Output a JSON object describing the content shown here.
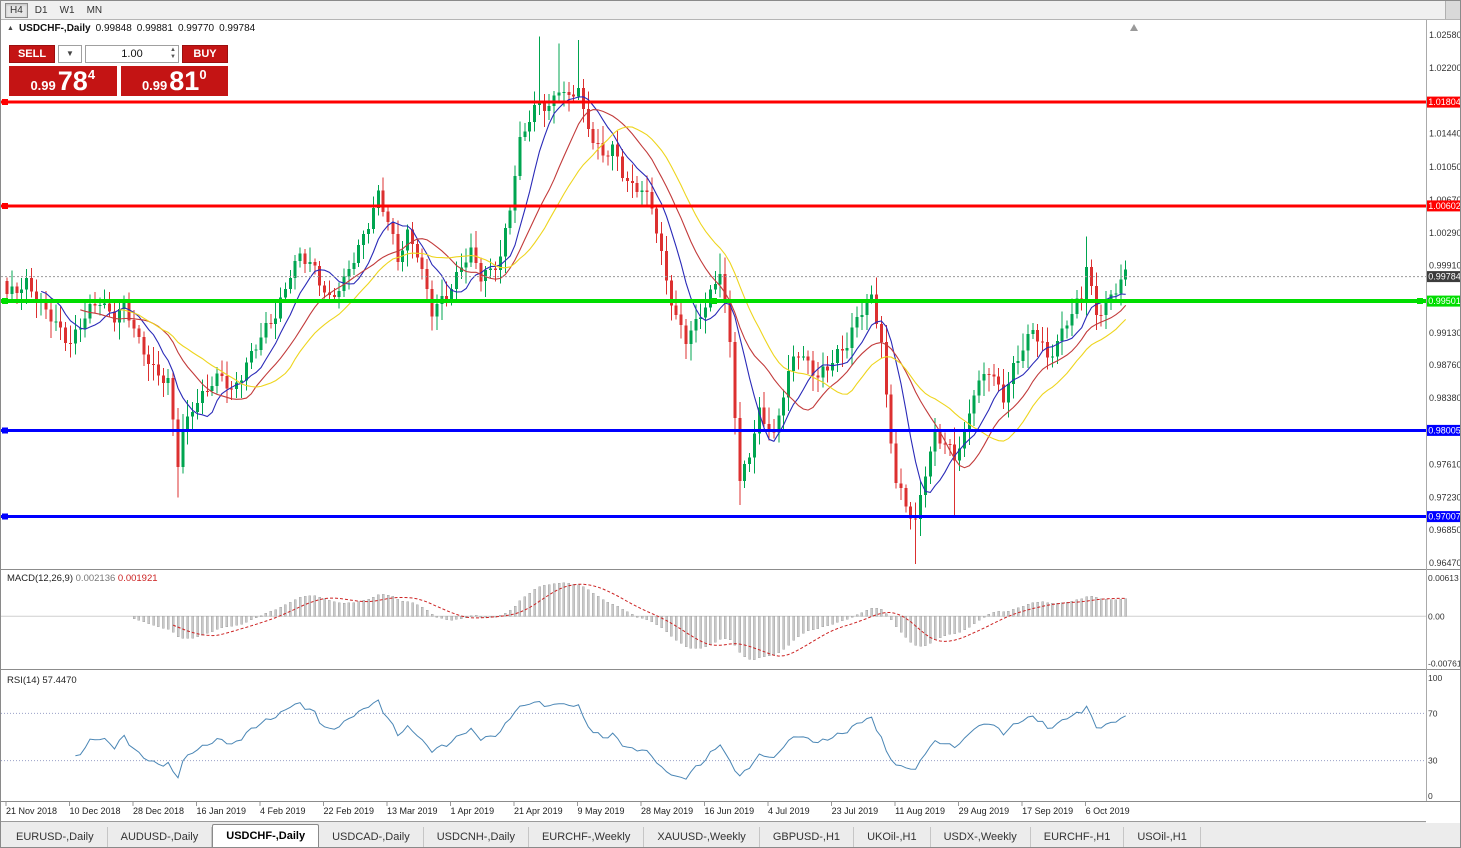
{
  "toolbar": {
    "timeframes": [
      {
        "label": "H4",
        "active": true
      },
      {
        "label": "D1",
        "active": false
      },
      {
        "label": "W1",
        "active": false
      },
      {
        "label": "MN",
        "active": false
      }
    ]
  },
  "chart_header": {
    "symbol": "USDCHF-,Daily",
    "open": "0.99848",
    "high": "0.99881",
    "low": "0.99770",
    "close": "0.99784"
  },
  "trade_panel": {
    "sell_label": "SELL",
    "buy_label": "BUY",
    "volume": "1.00",
    "sell_price": {
      "small": "0.99",
      "big": "78",
      "sup": "4"
    },
    "buy_price": {
      "small": "0.99",
      "big": "81",
      "sup": "0"
    }
  },
  "price_scale": {
    "ticks": [
      "1.02580",
      "1.02200",
      "1.01440",
      "1.01050",
      "1.00670",
      "1.00290",
      "0.99910",
      "0.99130",
      "0.98760",
      "0.98380",
      "0.97610",
      "0.97230",
      "0.96850",
      "0.96470"
    ]
  },
  "levels": [
    {
      "label": "1.01804",
      "price": 1.01804,
      "color": "#FF0000",
      "width": 3,
      "handles": false
    },
    {
      "label": "1.00602",
      "price": 1.00602,
      "color": "#FF0000",
      "width": 3,
      "handles": false
    },
    {
      "label": "0.99501",
      "price": 0.99501,
      "color": "#00DD00",
      "width": 4,
      "handles": true
    },
    {
      "label": "0.98005",
      "price": 0.98005,
      "color": "#0000FF",
      "width": 3,
      "handles": false
    },
    {
      "label": "0.97007",
      "price": 0.97007,
      "color": "#0000FF",
      "width": 3,
      "handles": false
    }
  ],
  "current_price": {
    "label": "0.99784",
    "price": 0.99784
  },
  "macd": {
    "title": "MACD(12,26,9)",
    "value": "0.002136",
    "signal_value": "0.001921",
    "params": {
      "fast": 12,
      "slow": 26,
      "signal": 9
    },
    "axis": [
      {
        "label": "0.00613",
        "value": 0.00613
      },
      {
        "label": "0.00",
        "value": 0
      },
      {
        "label": "-0.0076122",
        "value": -0.0076122
      }
    ]
  },
  "rsi": {
    "title": "RSI(14)",
    "value": "57.4470",
    "period": 14,
    "axis": [
      {
        "label": "100",
        "value": 100
      },
      {
        "label": "70",
        "value": 70
      },
      {
        "label": "30",
        "value": 30
      },
      {
        "label": "0",
        "value": 0
      }
    ],
    "guide_levels": [
      70,
      30
    ]
  },
  "dates": [
    "21 Nov 2018",
    "10 Dec 2018",
    "28 Dec 2018",
    "16 Jan 2019",
    "4 Feb 2019",
    "22 Feb 2019",
    "13 Mar 2019",
    "1 Apr 2019",
    "21 Apr 2019",
    "9 May 2019",
    "28 May 2019",
    "16 Jun 2019",
    "4 Jul 2019",
    "23 Jul 2019",
    "11 Aug 2019",
    "29 Aug 2019",
    "17 Sep 2019",
    "6 Oct 2019"
  ],
  "tabs": [
    {
      "label": "EURUSD-,Daily",
      "active": false
    },
    {
      "label": "AUDUSD-,Daily",
      "active": false
    },
    {
      "label": "USDCHF-,Daily",
      "active": true
    },
    {
      "label": "USDCAD-,Daily",
      "active": false
    },
    {
      "label": "USDCNH-,Daily",
      "active": false
    },
    {
      "label": "EURCHF-,Weekly",
      "active": false
    },
    {
      "label": "XAUUSD-,Weekly",
      "active": false
    },
    {
      "label": "GBPUSD-,H1",
      "active": false
    },
    {
      "label": "UKOil-,H1",
      "active": false
    },
    {
      "label": "USDX-,Weekly",
      "active": false
    },
    {
      "label": "EURCHF-,H1",
      "active": false
    },
    {
      "label": "USOil-,H1",
      "active": false
    }
  ],
  "colors": {
    "up": "#00A550",
    "down": "#DC3030",
    "ma_fast": "#2A2AB8",
    "ma_mid": "#C23B3B",
    "ma_slow": "#EED51E",
    "macd_signal": "#CC2222",
    "macd_hist": "#C9C9C9",
    "rsi_line": "#4A86B5",
    "current_price_tag": "#3C3C3C"
  },
  "chart_data": {
    "type": "candlestick",
    "symbol": "USDCHF-",
    "timeframe": "Daily",
    "n_candles": 230,
    "candles_per_date_label": 13,
    "y_axis_range": [
      0.9647,
      1.0258
    ],
    "current_ohlc": {
      "open": 0.99848,
      "high": 0.99881,
      "low": 0.9977,
      "close": 0.99784
    },
    "moving_averages": [
      {
        "color_key": "ma_fast",
        "period": 8
      },
      {
        "color_key": "ma_mid",
        "period": 16
      },
      {
        "color_key": "ma_slow",
        "period": 24
      }
    ],
    "price_anchors": [
      [
        0,
        0.9955
      ],
      [
        4,
        0.9975
      ],
      [
        8,
        0.9935
      ],
      [
        13,
        0.9905
      ],
      [
        16,
        0.993
      ],
      [
        19,
        0.995
      ],
      [
        22,
        0.9935
      ],
      [
        24,
        0.9945
      ],
      [
        27,
        0.99
      ],
      [
        30,
        0.9875
      ],
      [
        33,
        0.9855
      ],
      [
        35,
        0.976
      ],
      [
        36,
        0.9795
      ],
      [
        38,
        0.983
      ],
      [
        41,
        0.985
      ],
      [
        44,
        0.986
      ],
      [
        46,
        0.9845
      ],
      [
        49,
        0.988
      ],
      [
        52,
        0.9905
      ],
      [
        55,
        0.9935
      ],
      [
        58,
        0.9985
      ],
      [
        60,
        1.0
      ],
      [
        63,
        0.9985
      ],
      [
        66,
        0.9955
      ],
      [
        69,
        0.997
      ],
      [
        72,
        1.001
      ],
      [
        75,
        1.006
      ],
      [
        76,
        1.0075
      ],
      [
        78,
        1.004
      ],
      [
        80,
        0.9995
      ],
      [
        82,
        1.003
      ],
      [
        84,
        1.001
      ],
      [
        87,
        0.9935
      ],
      [
        90,
        0.9955
      ],
      [
        93,
        0.9995
      ],
      [
        95,
        1.0005
      ],
      [
        97,
        0.9975
      ],
      [
        99,
        0.9985
      ],
      [
        101,
        1.0005
      ],
      [
        103,
        1.006
      ],
      [
        105,
        1.013
      ],
      [
        107,
        1.016
      ],
      [
        109,
        1.0185
      ],
      [
        111,
        1.0175
      ],
      [
        113,
        1.0195
      ],
      [
        115,
        1.018
      ],
      [
        117,
        1.02
      ],
      [
        118,
        1.017
      ],
      [
        120,
        1.014
      ],
      [
        122,
        1.0115
      ],
      [
        124,
        1.0125
      ],
      [
        126,
        1.01
      ],
      [
        128,
        1.0085
      ],
      [
        130,
        1.008
      ],
      [
        132,
        1.0055
      ],
      [
        133,
        1.003
      ],
      [
        135,
        0.9975
      ],
      [
        137,
        0.9935
      ],
      [
        139,
        0.9905
      ],
      [
        141,
        0.992
      ],
      [
        143,
        0.9945
      ],
      [
        145,
        0.9975
      ],
      [
        146,
        0.999
      ],
      [
        148,
        0.99
      ],
      [
        150,
        0.9735
      ],
      [
        152,
        0.9775
      ],
      [
        154,
        0.9825
      ],
      [
        156,
        0.9805
      ],
      [
        157,
        0.979
      ],
      [
        159,
        0.984
      ],
      [
        161,
        0.9885
      ],
      [
        162,
        0.9895
      ],
      [
        164,
        0.988
      ],
      [
        166,
        0.986
      ],
      [
        168,
        0.987
      ],
      [
        170,
        0.989
      ],
      [
        172,
        0.9905
      ],
      [
        174,
        0.993
      ],
      [
        176,
        0.9945
      ],
      [
        177,
        0.995
      ],
      [
        179,
        0.9905
      ],
      [
        180,
        0.984
      ],
      [
        182,
        0.9745
      ],
      [
        184,
        0.971
      ],
      [
        186,
        0.969
      ],
      [
        188,
        0.9755
      ],
      [
        190,
        0.98
      ],
      [
        192,
        0.9785
      ],
      [
        194,
        0.9765
      ],
      [
        196,
        0.9795
      ],
      [
        198,
        0.985
      ],
      [
        200,
        0.9865
      ],
      [
        201,
        0.987
      ],
      [
        203,
        0.9845
      ],
      [
        204,
        0.9835
      ],
      [
        206,
        0.9875
      ],
      [
        208,
        0.99
      ],
      [
        210,
        0.9915
      ],
      [
        212,
        0.9895
      ],
      [
        213,
        0.988
      ],
      [
        215,
        0.9905
      ],
      [
        217,
        0.993
      ],
      [
        219,
        0.9945
      ],
      [
        220,
        0.995
      ],
      [
        221,
        0.999
      ],
      [
        222,
        0.996
      ],
      [
        223,
        0.9935
      ],
      [
        225,
        0.995
      ],
      [
        227,
        0.9965
      ],
      [
        229,
        0.9978
      ]
    ],
    "spikes": [
      {
        "i": 35,
        "low": 0.9723
      },
      {
        "i": 109,
        "high": 1.0256
      },
      {
        "i": 113,
        "high": 1.0248
      },
      {
        "i": 117,
        "high": 1.0252
      },
      {
        "i": 146,
        "high": 1.0005
      },
      {
        "i": 150,
        "low": 0.9714
      },
      {
        "i": 186,
        "low": 0.9646
      },
      {
        "i": 194,
        "low": 0.9702
      },
      {
        "i": 221,
        "high": 1.0025
      }
    ]
  }
}
